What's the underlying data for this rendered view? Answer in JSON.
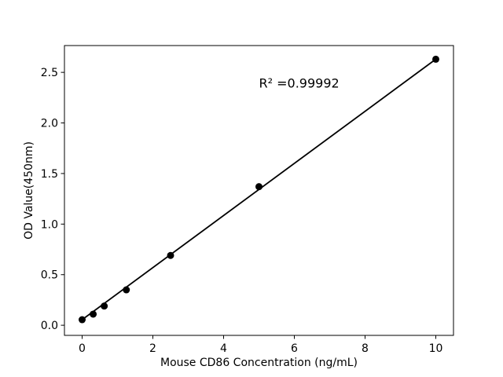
{
  "figure": {
    "background": "#ffffff",
    "text_color": "#000000"
  },
  "chart_data": {
    "type": "scatter",
    "title": "",
    "xlabel": "Mouse CD86 Concentration (ng/mL)",
    "ylabel": "OD Value(450nm)",
    "annotation": "R² =0.99992",
    "annotation_position": {
      "x": 5,
      "y": 2.35
    },
    "x": [
      0,
      0.3125,
      0.625,
      1.25,
      2.5,
      5,
      10
    ],
    "y": [
      0.055,
      0.11,
      0.19,
      0.35,
      0.69,
      1.37,
      2.63
    ],
    "trendline": {
      "x": [
        0,
        10
      ],
      "y": [
        0.055,
        2.63
      ]
    },
    "xticks": {
      "values": [
        0,
        2,
        4,
        6,
        8,
        10
      ],
      "labels": [
        "0",
        "2",
        "4",
        "6",
        "8",
        "10"
      ]
    },
    "yticks": {
      "values": [
        0,
        0.5,
        1.0,
        1.5,
        2.0,
        2.5
      ],
      "labels": [
        "0.0",
        "0.5",
        "1.0",
        "1.5",
        "2.0",
        "2.5"
      ]
    },
    "xlim": [
      -0.5,
      10.5
    ],
    "ylim": [
      -0.1,
      2.765
    ],
    "grid": false,
    "legend_position": "none",
    "marker_color": "#000000",
    "line_color": "#000000",
    "axis_color": "#000000"
  }
}
